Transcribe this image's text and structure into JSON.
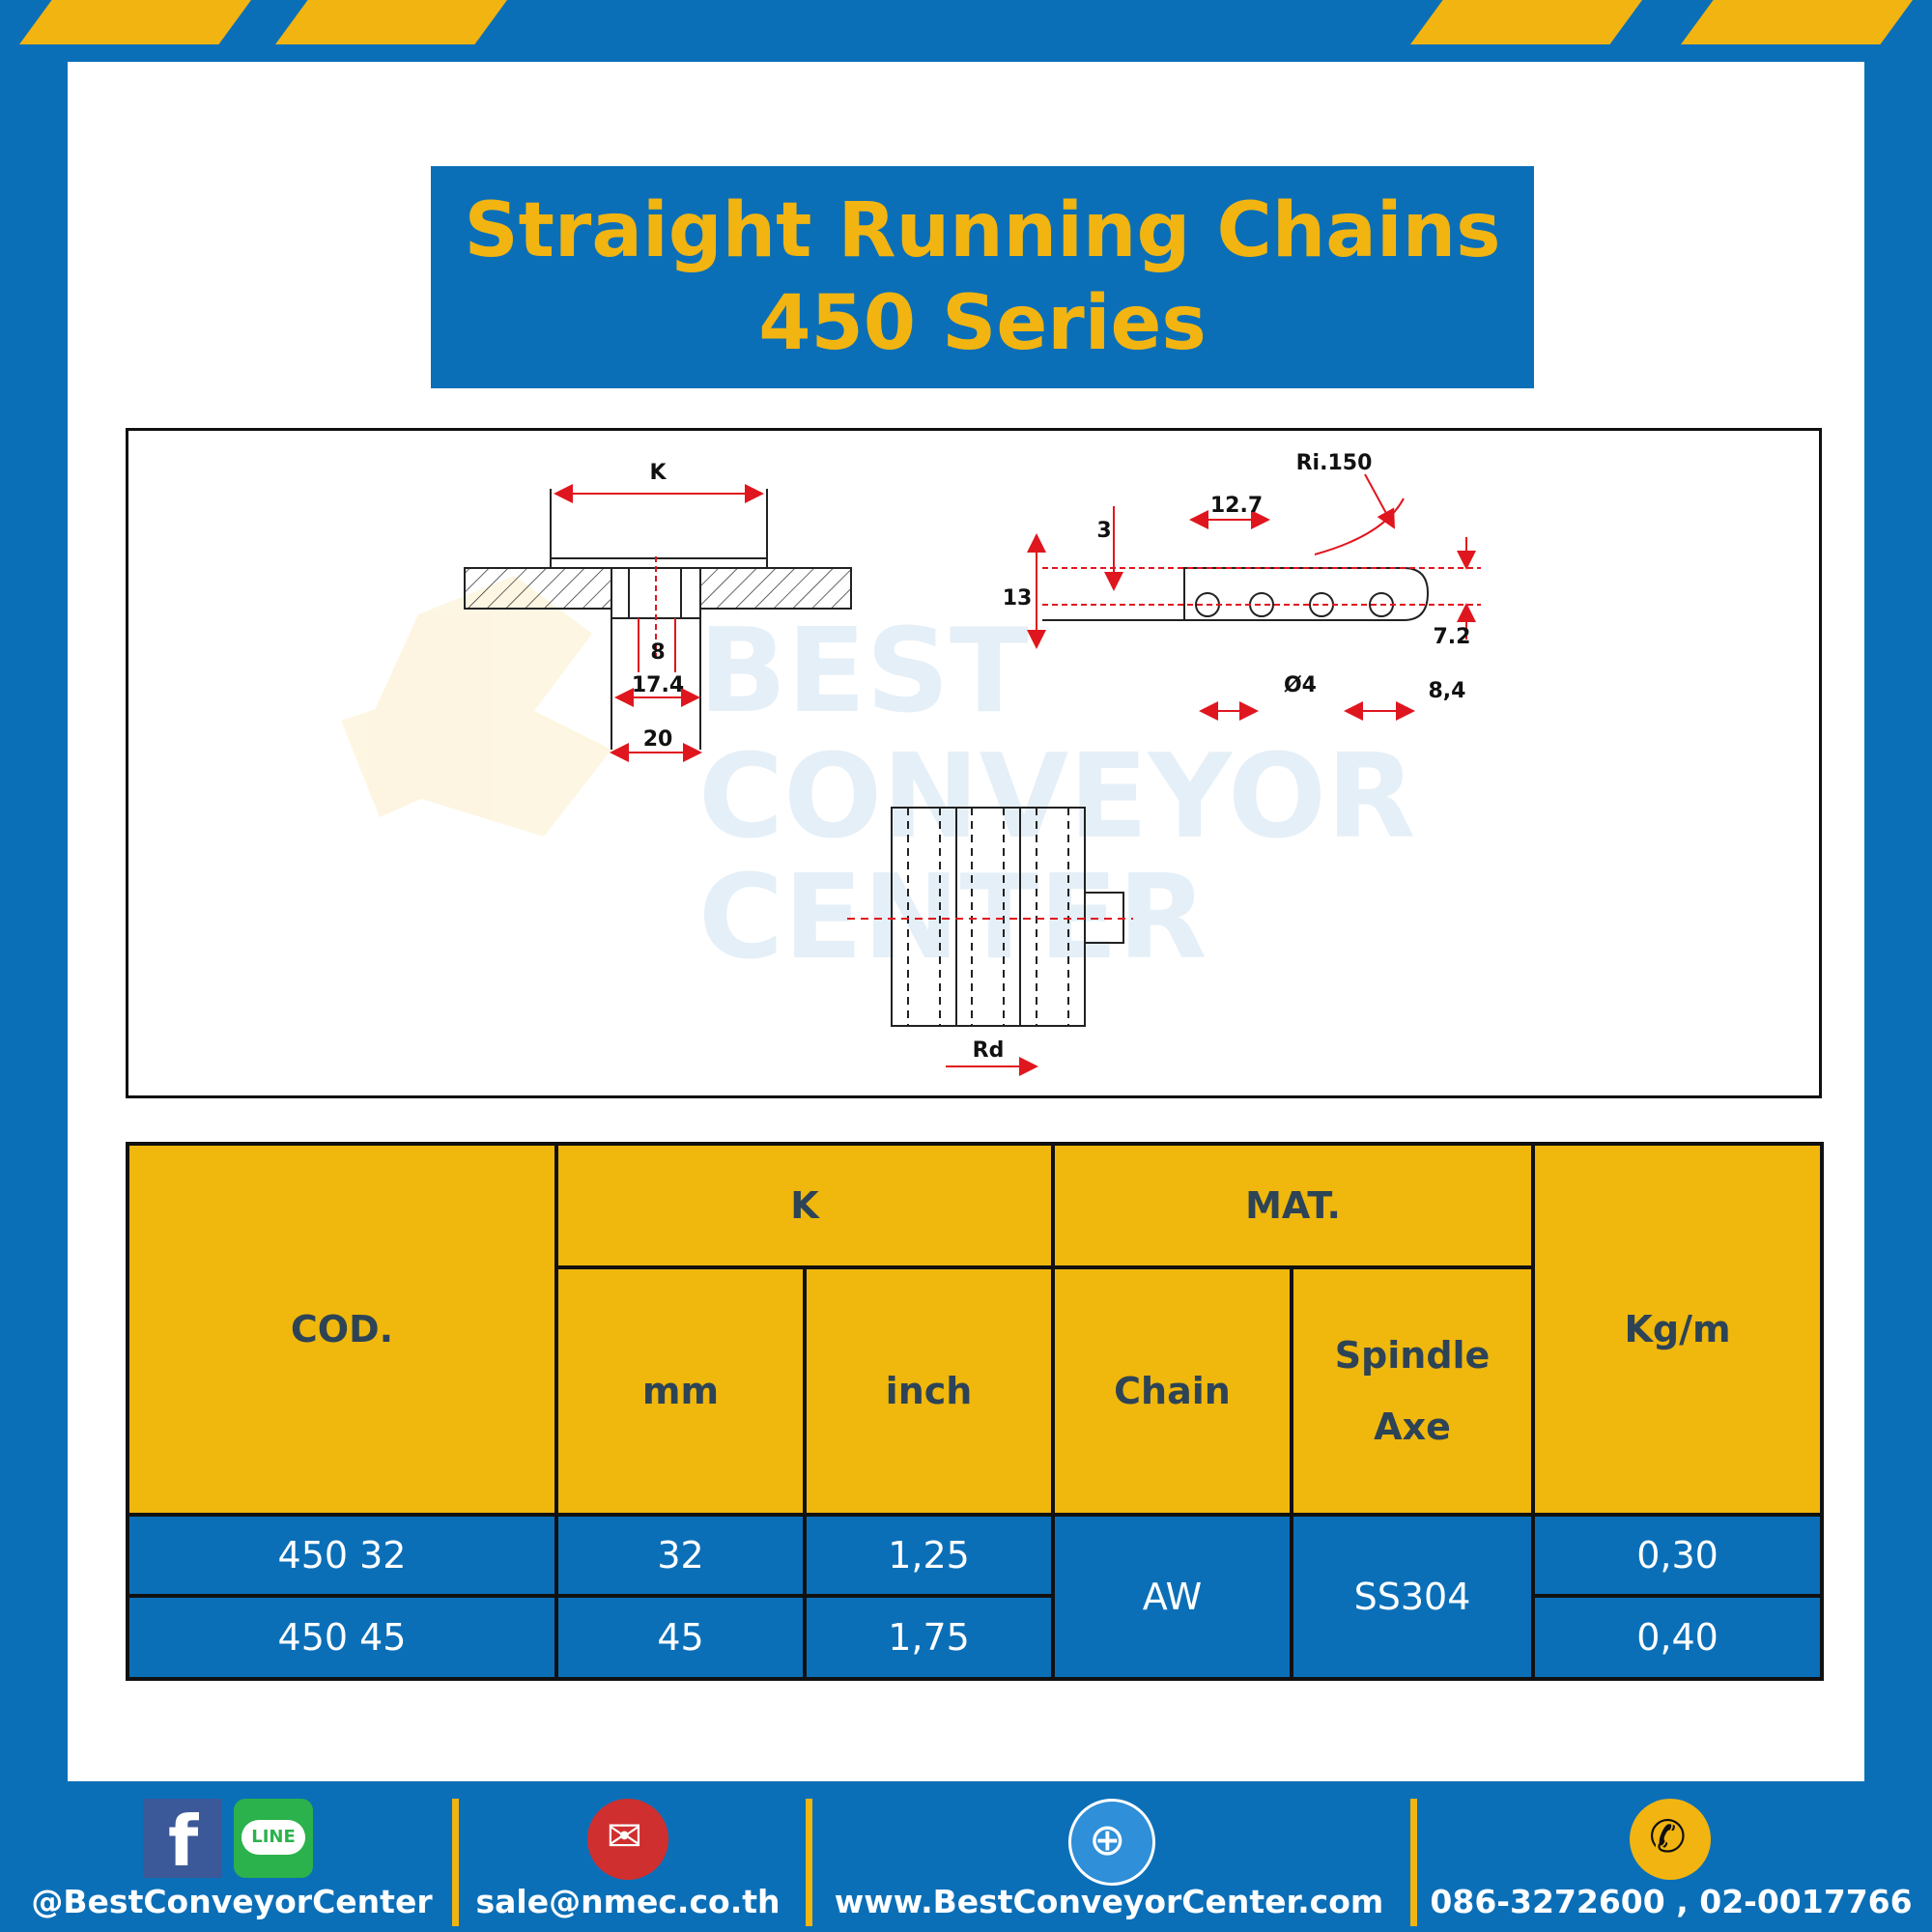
{
  "title": {
    "line1": "Straight Running Chains",
    "line2": "450 Series"
  },
  "drawing": {
    "labels": {
      "k": "K",
      "d8": "8",
      "d17": "17.4",
      "d20": "20",
      "pitch": "12.7",
      "three": "3",
      "thirteen": "13",
      "radius": "Ri.150",
      "seven": "7.2",
      "pin": "Ø4",
      "eight4": "8,4",
      "rd": "Rd"
    },
    "watermark": {
      "line1": "BEST",
      "line2": "CONVEYOR",
      "line3": "CENTER"
    }
  },
  "table": {
    "headers": {
      "cod": "COD.",
      "k": "K",
      "mat": "MAT.",
      "kgm": "Kg/m",
      "mm": "mm",
      "inch": "inch",
      "chain": "Chain",
      "spindle1": "Spindle",
      "spindle2": "Axe"
    },
    "rows": [
      {
        "cod": "450 32",
        "mm": "32",
        "inch": "1,25",
        "kgm": "0,30"
      },
      {
        "cod": "450 45",
        "mm": "45",
        "inch": "1,75",
        "kgm": "0,40"
      }
    ],
    "chain_mat": "AW",
    "spindle_mat": "SS304"
  },
  "footer": {
    "social": "@BestConveyorCenter",
    "email": "sale@nmec.co.th",
    "website": "www.BestConveyorCenter.com",
    "phone": "086-3272600 , 02-0017766",
    "line_icon_text": "LINE",
    "icons": [
      "facebook-icon",
      "line-icon",
      "email-icon",
      "globe-icon",
      "phone-icon"
    ],
    "colors": {
      "blue": "#0b6fb8",
      "yellow": "#f2b411",
      "header": "#f0b70c"
    }
  }
}
